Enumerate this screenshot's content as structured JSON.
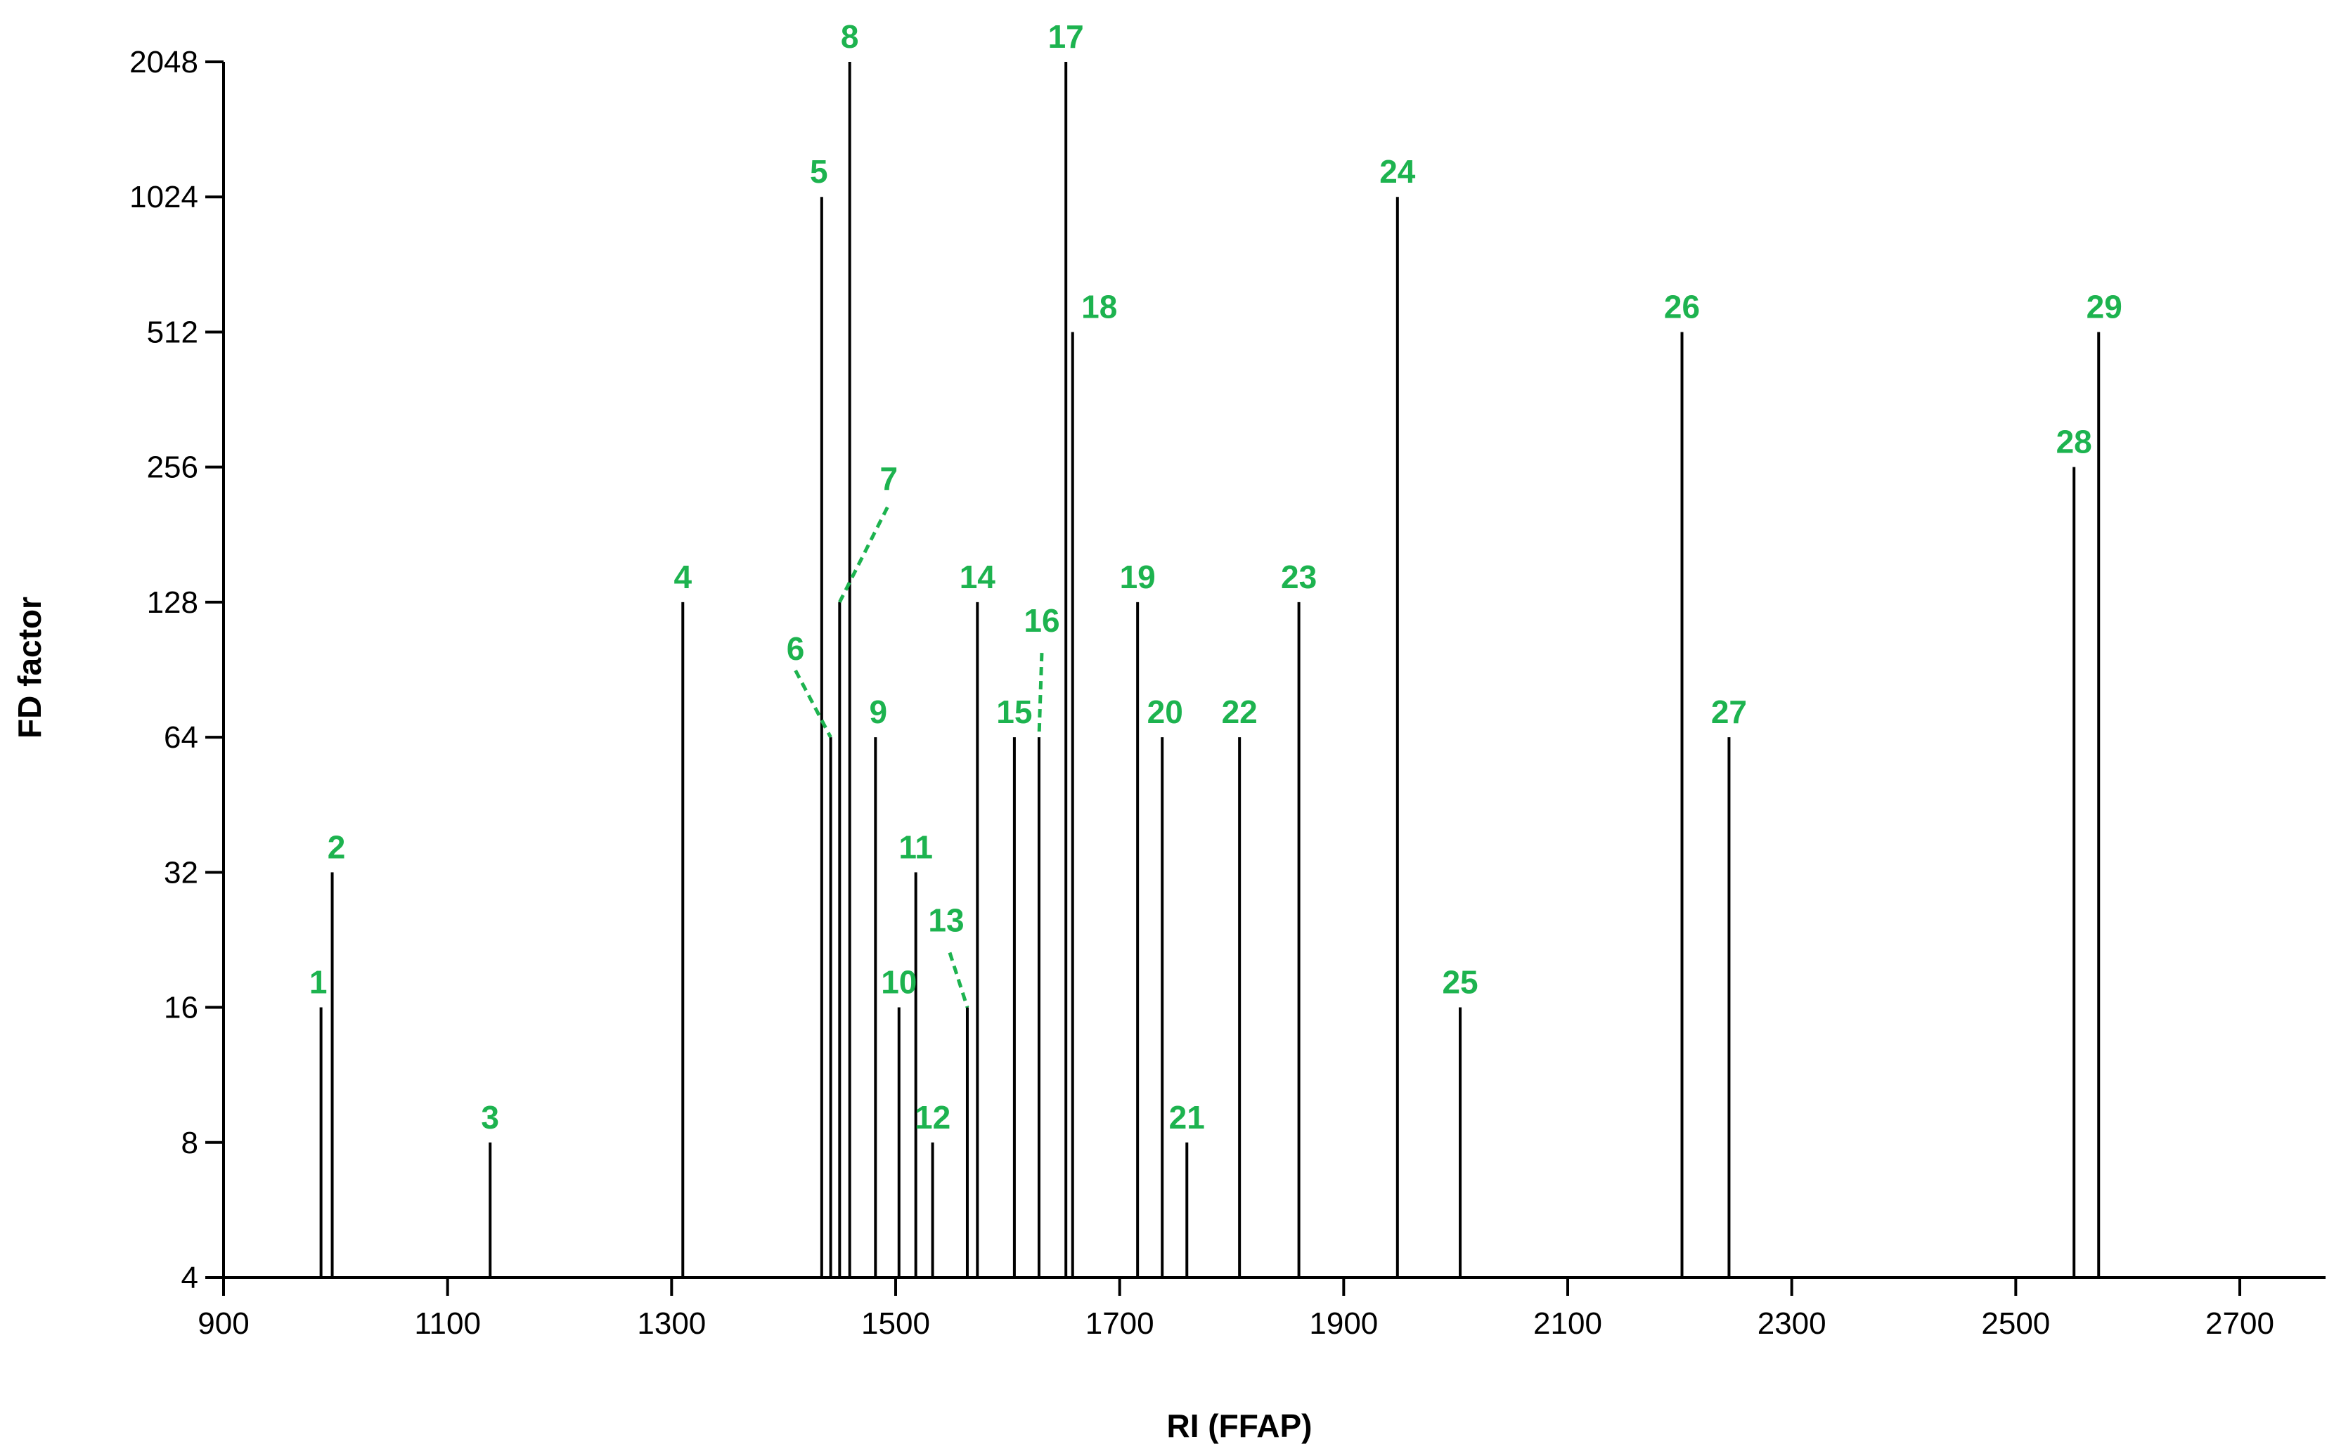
{
  "chart_data": {
    "type": "bar",
    "title": "",
    "xlabel": "RI (FFAP)",
    "ylabel": "FD factor",
    "y_scale": "log2",
    "xlim": [
      900,
      2740
    ],
    "ylim": [
      4,
      2048
    ],
    "x_ticks": [
      900,
      1100,
      1300,
      1500,
      1700,
      1900,
      2100,
      2300,
      2500,
      2700
    ],
    "y_ticks": [
      4,
      8,
      16,
      32,
      64,
      128,
      256,
      512,
      1024,
      2048
    ],
    "grid": false,
    "colors": {
      "bars": "#000000",
      "labels": "#1db34f"
    },
    "peaks": [
      {
        "label": "1",
        "x": 987,
        "y": 16
      },
      {
        "label": "2",
        "x": 997,
        "y": 32
      },
      {
        "label": "3",
        "x": 1138,
        "y": 8
      },
      {
        "label": "4",
        "x": 1310,
        "y": 128
      },
      {
        "label": "5",
        "x": 1434,
        "y": 1024
      },
      {
        "label": "6",
        "x": 1442,
        "y": 64
      },
      {
        "label": "7",
        "x": 1450,
        "y": 128
      },
      {
        "label": "8",
        "x": 1459,
        "y": 2048
      },
      {
        "label": "9",
        "x": 1482,
        "y": 64
      },
      {
        "label": "10",
        "x": 1503,
        "y": 16
      },
      {
        "label": "11",
        "x": 1518,
        "y": 32
      },
      {
        "label": "12",
        "x": 1533,
        "y": 8
      },
      {
        "label": "13",
        "x": 1564,
        "y": 16
      },
      {
        "label": "14",
        "x": 1573,
        "y": 128
      },
      {
        "label": "15",
        "x": 1606,
        "y": 64
      },
      {
        "label": "16",
        "x": 1628,
        "y": 64
      },
      {
        "label": "17",
        "x": 1652,
        "y": 2048
      },
      {
        "label": "18",
        "x": 1658,
        "y": 512
      },
      {
        "label": "19",
        "x": 1716,
        "y": 128
      },
      {
        "label": "20",
        "x": 1738,
        "y": 64
      },
      {
        "label": "21",
        "x": 1760,
        "y": 8
      },
      {
        "label": "22",
        "x": 1807,
        "y": 64
      },
      {
        "label": "23",
        "x": 1860,
        "y": 128
      },
      {
        "label": "24",
        "x": 1948,
        "y": 1024
      },
      {
        "label": "25",
        "x": 2004,
        "y": 16
      },
      {
        "label": "26",
        "x": 2202,
        "y": 512
      },
      {
        "label": "27",
        "x": 2244,
        "y": 64
      },
      {
        "label": "28",
        "x": 2552,
        "y": 256
      },
      {
        "label": "29",
        "x": 2574,
        "y": 512
      }
    ]
  }
}
